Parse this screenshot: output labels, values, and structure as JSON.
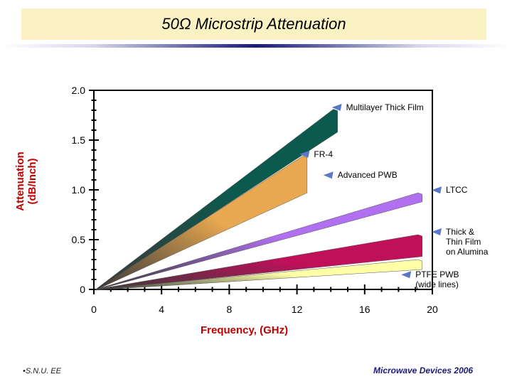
{
  "slide": {
    "title": "50Ω Microstrip Attenuation",
    "footer_left": "S.N.U. EE",
    "footer_right": "Microwave Devices 2006"
  },
  "chart_data": {
    "type": "area",
    "title": "50Ω Microstrip Attenuation",
    "xlabel": "Frequency, (GHz)",
    "ylabel_lines": [
      "Attenuation",
      "(dB/Inch)"
    ],
    "xlim": [
      0,
      20
    ],
    "ylim": [
      0,
      2.0
    ],
    "x_ticks": [
      0,
      4,
      8,
      12,
      16,
      20
    ],
    "y_ticks": [
      0,
      0.5,
      1.0,
      1.5,
      2.0
    ],
    "y_tick_labels": [
      "0",
      "0.5",
      "1.0",
      "1.5",
      "2.0"
    ],
    "series": [
      {
        "name": "Multilayer Thick Film",
        "color": "#0c5a4e",
        "x_end": 14.4,
        "upper_end": 1.81,
        "lower_end": 1.58
      },
      {
        "name": "FR-4",
        "color": "#e8a850",
        "x_end": 12.6,
        "upper_end": 1.34,
        "lower_end": 0.97
      },
      {
        "name": "Advanced PWB",
        "color": "#e8a850",
        "x_end": 12.6,
        "upper_end": 1.34,
        "lower_end": 0.97
      },
      {
        "name": "LTCC",
        "color": "#b070f0",
        "x_end": 19.4,
        "upper_end": 0.97,
        "lower_end": 0.88
      },
      {
        "name": "Thick & Thin Film on Alumina",
        "color": "#c0105a",
        "x_end": 19.4,
        "upper_end": 0.55,
        "lower_end": 0.33
      },
      {
        "name": "PTFE PWB (wide lines)",
        "color": "#ffffa8",
        "x_end": 19.4,
        "upper_end": 0.3,
        "lower_end": 0.2
      }
    ],
    "annotations": [
      {
        "lines": [
          "Multilayer Thick Film"
        ],
        "x": 14.9,
        "y": 1.8
      },
      {
        "lines": [
          "FR-4"
        ],
        "x": 13.0,
        "y": 1.33
      },
      {
        "lines": [
          "Advanced PWB"
        ],
        "x": 14.4,
        "y": 1.12
      },
      {
        "lines": [
          "LTCC"
        ],
        "x": 20.8,
        "y": 0.97
      },
      {
        "lines": [
          "Thick &",
          "Thin Film",
          "on Alumina"
        ],
        "x": 20.8,
        "y": 0.55
      },
      {
        "lines": [
          "PTFE PWB",
          "(wide lines)"
        ],
        "x": 19.0,
        "y": 0.12
      }
    ]
  }
}
